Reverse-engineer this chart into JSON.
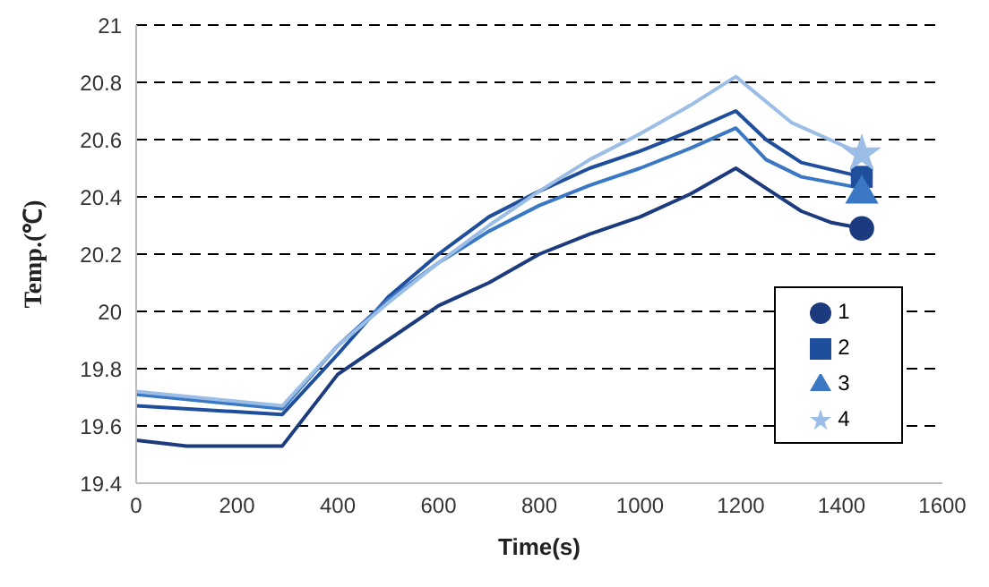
{
  "chart_data": {
    "type": "line",
    "xlabel": "Time(s)",
    "ylabel": "Temp.(℃)",
    "xlim": [
      0,
      1600
    ],
    "xticks": [
      0,
      200,
      400,
      600,
      800,
      1000,
      1200,
      1400,
      1600
    ],
    "ylim": [
      19.4,
      21
    ],
    "yticks": [
      19.4,
      19.6,
      19.8,
      20,
      20.2,
      20.4,
      20.6,
      20.8,
      21
    ],
    "grid": "y",
    "legend": "right",
    "line_style": "solid",
    "series": [
      {
        "color": "#1c3a7e",
        "x": [
          0,
          100,
          290,
          400,
          500,
          600,
          700,
          800,
          900,
          1000,
          1100,
          1190,
          1250,
          1320,
          1380,
          1440
        ],
        "values": [
          19.55,
          19.53,
          19.53,
          19.78,
          19.9,
          20.02,
          20.1,
          20.2,
          20.27,
          20.33,
          20.41,
          20.5,
          20.43,
          20.35,
          20.31,
          20.29
        ]
      },
      {
        "color": "#1f4e9c",
        "x": [
          0,
          290,
          400,
          500,
          600,
          700,
          800,
          900,
          1000,
          1100,
          1190,
          1250,
          1320,
          1440
        ],
        "values": [
          19.67,
          19.64,
          19.85,
          20.05,
          20.2,
          20.33,
          20.42,
          20.5,
          20.56,
          20.63,
          20.7,
          20.6,
          20.52,
          20.47
        ]
      },
      {
        "color": "#3a78c4",
        "x": [
          0,
          290,
          400,
          500,
          600,
          700,
          800,
          900,
          1000,
          1100,
          1190,
          1250,
          1320,
          1440
        ],
        "values": [
          19.71,
          19.66,
          19.88,
          20.04,
          20.17,
          20.28,
          20.37,
          20.44,
          20.5,
          20.57,
          20.64,
          20.53,
          20.47,
          20.43
        ]
      },
      {
        "color": "#9bbde6",
        "x": [
          0,
          290,
          400,
          500,
          600,
          700,
          800,
          900,
          1000,
          1100,
          1190,
          1300,
          1440
        ],
        "values": [
          19.72,
          19.67,
          19.88,
          20.03,
          20.17,
          20.3,
          20.42,
          20.53,
          20.62,
          20.72,
          20.82,
          20.66,
          20.55
        ]
      },
      {
        "type": "scatter",
        "name": "1",
        "color": "#1c3a7e",
        "marker": "circle",
        "x": [
          1440
        ],
        "values": [
          20.29
        ]
      },
      {
        "type": "scatter",
        "name": "2",
        "color": "#1f4e9c",
        "marker": "square",
        "x": [
          1440
        ],
        "values": [
          20.47
        ]
      },
      {
        "type": "scatter",
        "name": "3",
        "color": "#3a78c4",
        "marker": "triangle",
        "x": [
          1440
        ],
        "values": [
          20.41
        ]
      },
      {
        "type": "scatter",
        "name": "4",
        "color": "#9bbde6",
        "marker": "star",
        "x": [
          1440
        ],
        "values": [
          20.55
        ]
      }
    ]
  }
}
